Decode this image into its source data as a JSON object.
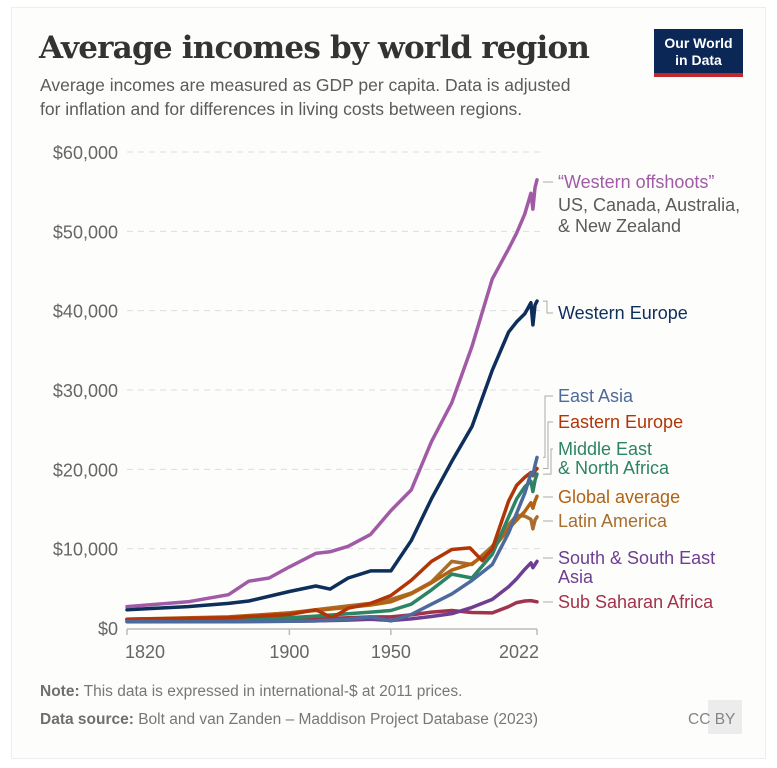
{
  "header": {
    "title": "Average incomes by world region",
    "subtitle_line1": "Average incomes are measured as GDP per capita. Data is adjusted",
    "subtitle_line2": "for inflation and for differences in living costs between regions.",
    "logo_line1": "Our World",
    "logo_line2": "in Data"
  },
  "footer": {
    "note_label": "Note:",
    "note_text": " This data is expressed in international-$ at 2011 prices.",
    "source_label": "Data source:",
    "source_text": " Bolt and van Zanden – Maddison Project Database (2023)",
    "license": "CC BY"
  },
  "colors": {
    "background": "#fdfdfc",
    "grid": "#dddddd",
    "axis": "#bbbbbb",
    "logo_bg": "#0b2755",
    "logo_accent": "#c1272d"
  },
  "chart_data": {
    "type": "line",
    "title": "Average incomes by world region",
    "xlabel": "",
    "ylabel": "",
    "xlim": [
      1820,
      2022
    ],
    "ylim": [
      0,
      60000
    ],
    "grid": "horizontal dashed",
    "legend": "right, inline labels at line ends",
    "x_ticks": [
      {
        "value": 1820,
        "label": "1820"
      },
      {
        "value": 1900,
        "label": "1900"
      },
      {
        "value": 1950,
        "label": "1950"
      },
      {
        "value": 2022,
        "label": "2022"
      }
    ],
    "y_ticks": [
      {
        "value": 0,
        "label": "$0"
      },
      {
        "value": 10000,
        "label": "$10,000"
      },
      {
        "value": 20000,
        "label": "$20,000"
      },
      {
        "value": 30000,
        "label": "$30,000"
      },
      {
        "value": 40000,
        "label": "$40,000"
      },
      {
        "value": 50000,
        "label": "$50,000"
      },
      {
        "value": 60000,
        "label": "$60,000"
      }
    ],
    "series": [
      {
        "name": "Sub Saharan Africa",
        "label_lines": [
          "Sub Saharan Africa"
        ],
        "color": "#a2334c",
        "x": [
          1820,
          1870,
          1900,
          1913,
          1929,
          1940,
          1950,
          1960,
          1970,
          1980,
          1990,
          2000,
          2008,
          2012,
          2016,
          2019,
          2022
        ],
        "y": [
          900,
          1000,
          1100,
          1150,
          1300,
          1400,
          1400,
          1650,
          2000,
          2200,
          1950,
          1900,
          2700,
          3200,
          3400,
          3450,
          3300
        ]
      },
      {
        "name": "South & South East Asia",
        "label_lines": [
          "South & South East",
          "Asia"
        ],
        "color": "#6d3e91",
        "x": [
          1820,
          1870,
          1900,
          1913,
          1929,
          1940,
          1950,
          1960,
          1970,
          1980,
          1990,
          2000,
          2008,
          2012,
          2016,
          2019,
          2020,
          2021,
          2022
        ],
        "y": [
          800,
          800,
          850,
          900,
          1000,
          1100,
          950,
          1150,
          1450,
          1800,
          2600,
          3600,
          5200,
          6200,
          7400,
          8200,
          7600,
          8000,
          8400
        ]
      },
      {
        "name": "Latin America",
        "label_lines": [
          "Latin America"
        ],
        "color": "#a76e2f",
        "x": [
          1820,
          1870,
          1900,
          1913,
          1929,
          1940,
          1950,
          1960,
          1970,
          1980,
          1990,
          2000,
          2008,
          2012,
          2016,
          2019,
          2020,
          2021,
          2022
        ],
        "y": [
          1100,
          1300,
          1900,
          2300,
          2800,
          3100,
          3600,
          4400,
          5800,
          8400,
          8000,
          10300,
          13000,
          14200,
          14100,
          13700,
          12500,
          13600,
          14000
        ]
      },
      {
        "name": "Global average",
        "label_lines": [
          "Global average"
        ],
        "color": "#b16214",
        "x": [
          1820,
          1870,
          1900,
          1913,
          1929,
          1940,
          1950,
          1960,
          1970,
          1980,
          1990,
          2000,
          2008,
          2012,
          2016,
          2019,
          2020,
          2021,
          2022
        ],
        "y": [
          1100,
          1400,
          1900,
          2200,
          2600,
          2900,
          3300,
          4300,
          5700,
          7300,
          8100,
          9900,
          12500,
          13600,
          14700,
          15800,
          15100,
          16000,
          16600
        ]
      },
      {
        "name": "Middle East & North Africa",
        "label_lines": [
          "Middle East",
          "& North Africa"
        ],
        "color": "#2c8465",
        "x": [
          1820,
          1870,
          1900,
          1913,
          1929,
          1940,
          1950,
          1960,
          1970,
          1980,
          1990,
          2000,
          2008,
          2012,
          2016,
          2019,
          2020,
          2021,
          2022
        ],
        "y": [
          1000,
          1100,
          1300,
          1500,
          1800,
          2000,
          2200,
          3000,
          4800,
          6800,
          6300,
          9300,
          14000,
          16300,
          17800,
          18500,
          17200,
          18600,
          19400
        ]
      },
      {
        "name": "Eastern Europe",
        "label_lines": [
          "Eastern Europe"
        ],
        "color": "#b13507",
        "x": [
          1820,
          1870,
          1900,
          1913,
          1921,
          1929,
          1940,
          1950,
          1960,
          1970,
          1980,
          1989,
          1995,
          2000,
          2008,
          2012,
          2016,
          2019,
          2020,
          2021,
          2022
        ],
        "y": [
          1100,
          1300,
          1700,
          2300,
          1300,
          2500,
          3100,
          4100,
          6000,
          8400,
          9900,
          10100,
          8500,
          10000,
          16000,
          18000,
          19000,
          19600,
          19200,
          19800,
          20100
        ]
      },
      {
        "name": "East Asia",
        "label_lines": [
          "East Asia"
        ],
        "color": "#4c6a9c",
        "x": [
          1820,
          1870,
          1900,
          1913,
          1929,
          1940,
          1950,
          1960,
          1970,
          1980,
          1990,
          2000,
          2008,
          2012,
          2016,
          2019,
          2020,
          2021,
          2022
        ],
        "y": [
          850,
          800,
          850,
          900,
          1100,
          1400,
          900,
          1700,
          3000,
          4300,
          6000,
          8000,
          12000,
          14500,
          17000,
          19500,
          19300,
          20500,
          21500
        ]
      },
      {
        "name": "Western Europe",
        "label_lines": [
          "Western Europe"
        ],
        "color": "#0e2e5b",
        "x": [
          1820,
          1850,
          1870,
          1880,
          1900,
          1913,
          1920,
          1929,
          1940,
          1950,
          1960,
          1970,
          1980,
          1990,
          2000,
          2008,
          2012,
          2016,
          2019,
          2020,
          2021,
          2022
        ],
        "y": [
          2300,
          2700,
          3100,
          3400,
          4600,
          5300,
          4900,
          6300,
          7200,
          7200,
          11000,
          16300,
          21000,
          25400,
          32500,
          37300,
          38600,
          39600,
          41000,
          38200,
          40700,
          41200
        ]
      },
      {
        "name": "“Western offshoots”",
        "label_lines": [
          "“Western offshoots”",
          "US, Canada, Australia,",
          "& New Zealand"
        ],
        "color": "#a15ba6",
        "x": [
          1820,
          1850,
          1870,
          1880,
          1890,
          1900,
          1913,
          1920,
          1929,
          1940,
          1950,
          1960,
          1970,
          1980,
          1990,
          2000,
          2008,
          2012,
          2016,
          2019,
          2020,
          2021,
          2022
        ],
        "y": [
          2700,
          3300,
          4200,
          5900,
          6300,
          7700,
          9400,
          9600,
          10300,
          11800,
          14800,
          17400,
          23500,
          28400,
          35500,
          44000,
          47800,
          49800,
          52200,
          54800,
          52800,
          55500,
          56500
        ]
      }
    ]
  }
}
